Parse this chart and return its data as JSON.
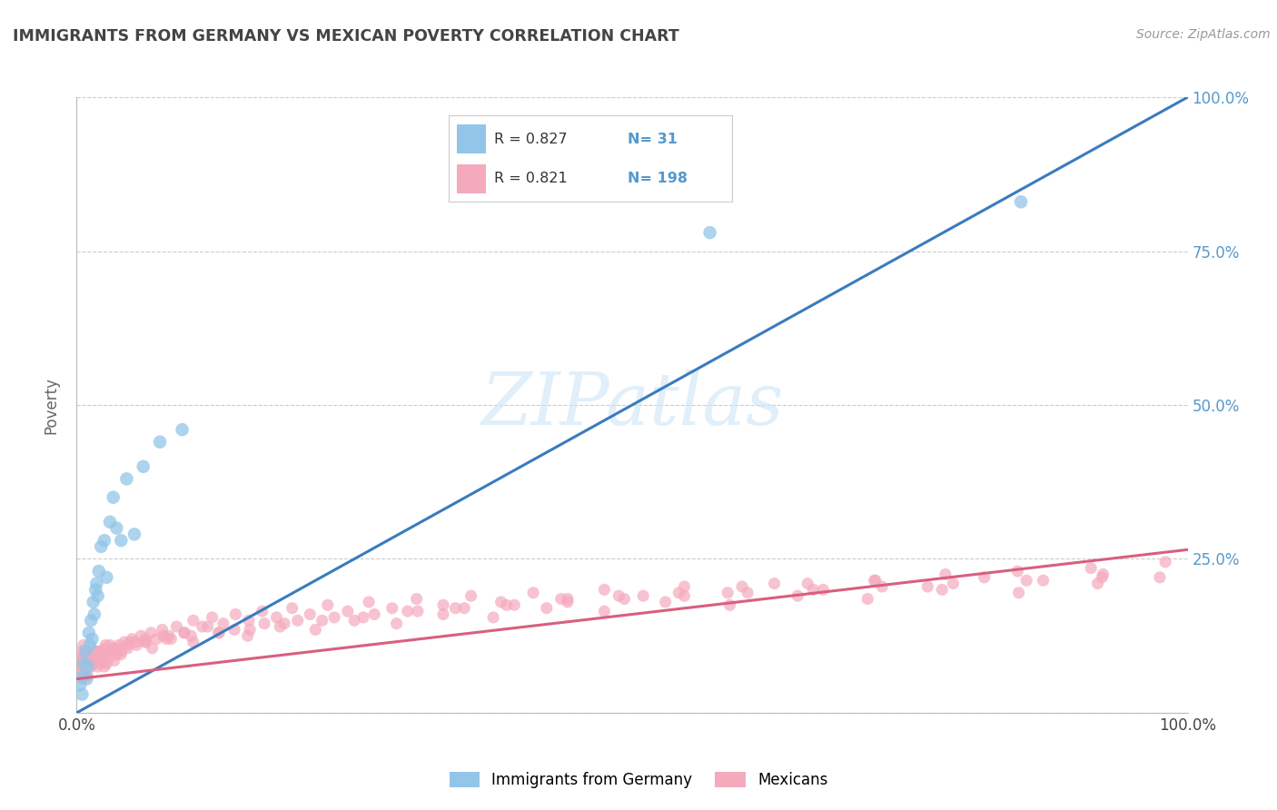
{
  "title": "IMMIGRANTS FROM GERMANY VS MEXICAN POVERTY CORRELATION CHART",
  "source": "Source: ZipAtlas.com",
  "ylabel": "Poverty",
  "watermark": "ZIPatlas",
  "xmin": 0.0,
  "xmax": 1.0,
  "ymin": 0.0,
  "ymax": 1.0,
  "yticks": [
    0.0,
    0.25,
    0.5,
    0.75,
    1.0
  ],
  "ytick_labels": [
    "",
    "25.0%",
    "50.0%",
    "75.0%",
    "100.0%"
  ],
  "xticks": [
    0.0,
    0.1,
    0.2,
    0.3,
    0.4,
    0.5,
    0.6,
    0.7,
    0.8,
    0.9,
    1.0
  ],
  "xtick_labels": [
    "0.0%",
    "",
    "",
    "",
    "",
    "",
    "",
    "",
    "",
    "",
    "100.0%"
  ],
  "blue_color": "#92c5e8",
  "pink_color": "#f4aabc",
  "blue_line_color": "#3a7bbf",
  "pink_line_color": "#d95f7f",
  "legend_R_blue": "0.827",
  "legend_N_blue": "31",
  "legend_R_pink": "0.821",
  "legend_N_pink": "198",
  "legend_label_blue": "Immigrants from Germany",
  "legend_label_pink": "Mexicans",
  "title_color": "#444444",
  "axis_color": "#666666",
  "right_tick_color": "#5599cc",
  "grid_color": "#cccccc",
  "background_color": "#ffffff",
  "blue_scatter_x": [
    0.003,
    0.005,
    0.006,
    0.007,
    0.008,
    0.009,
    0.01,
    0.011,
    0.012,
    0.013,
    0.014,
    0.015,
    0.016,
    0.017,
    0.018,
    0.019,
    0.02,
    0.022,
    0.025,
    0.027,
    0.03,
    0.033,
    0.036,
    0.04,
    0.045,
    0.052,
    0.06,
    0.075,
    0.095,
    0.57,
    0.85
  ],
  "blue_scatter_y": [
    0.045,
    0.03,
    0.06,
    0.08,
    0.1,
    0.055,
    0.075,
    0.13,
    0.11,
    0.15,
    0.12,
    0.18,
    0.16,
    0.2,
    0.21,
    0.19,
    0.23,
    0.27,
    0.28,
    0.22,
    0.31,
    0.35,
    0.3,
    0.28,
    0.38,
    0.29,
    0.4,
    0.44,
    0.46,
    0.78,
    0.83
  ],
  "pink_scatter_x": [
    0.002,
    0.003,
    0.004,
    0.005,
    0.005,
    0.006,
    0.006,
    0.007,
    0.007,
    0.008,
    0.008,
    0.009,
    0.009,
    0.01,
    0.01,
    0.011,
    0.012,
    0.013,
    0.014,
    0.015,
    0.016,
    0.017,
    0.018,
    0.019,
    0.02,
    0.021,
    0.022,
    0.023,
    0.024,
    0.025,
    0.026,
    0.027,
    0.028,
    0.03,
    0.032,
    0.034,
    0.036,
    0.038,
    0.04,
    0.043,
    0.046,
    0.05,
    0.054,
    0.058,
    0.062,
    0.067,
    0.072,
    0.077,
    0.083,
    0.09,
    0.097,
    0.105,
    0.113,
    0.122,
    0.132,
    0.143,
    0.155,
    0.167,
    0.18,
    0.194,
    0.21,
    0.226,
    0.244,
    0.263,
    0.284,
    0.306,
    0.33,
    0.355,
    0.382,
    0.411,
    0.442,
    0.475,
    0.51,
    0.547,
    0.586,
    0.628,
    0.672,
    0.718,
    0.766,
    0.817,
    0.87,
    0.924,
    0.975,
    0.006,
    0.01,
    0.015,
    0.022,
    0.03,
    0.04,
    0.053,
    0.068,
    0.085,
    0.105,
    0.128,
    0.154,
    0.183,
    0.215,
    0.25,
    0.288,
    0.33,
    0.375,
    0.423,
    0.475,
    0.53,
    0.588,
    0.649,
    0.712,
    0.779,
    0.848,
    0.919,
    0.004,
    0.007,
    0.012,
    0.018,
    0.026,
    0.036,
    0.048,
    0.062,
    0.078,
    0.097,
    0.118,
    0.142,
    0.169,
    0.199,
    0.232,
    0.268,
    0.307,
    0.349,
    0.394,
    0.442,
    0.493,
    0.547,
    0.604,
    0.663,
    0.725,
    0.789,
    0.855,
    0.923,
    0.003,
    0.008,
    0.014,
    0.022,
    0.033,
    0.046,
    0.062,
    0.081,
    0.103,
    0.128,
    0.156,
    0.187,
    0.221,
    0.258,
    0.298,
    0.341,
    0.387,
    0.436,
    0.488,
    0.542,
    0.599,
    0.658,
    0.719,
    0.782,
    0.847,
    0.913,
    0.98
  ],
  "pink_scatter_y": [
    0.065,
    0.085,
    0.07,
    0.1,
    0.055,
    0.08,
    0.11,
    0.075,
    0.095,
    0.06,
    0.085,
    0.07,
    0.1,
    0.08,
    0.06,
    0.09,
    0.085,
    0.075,
    0.095,
    0.08,
    0.1,
    0.09,
    0.085,
    0.075,
    0.095,
    0.08,
    0.1,
    0.09,
    0.085,
    0.075,
    0.105,
    0.08,
    0.095,
    0.09,
    0.1,
    0.085,
    0.095,
    0.11,
    0.1,
    0.115,
    0.105,
    0.12,
    0.11,
    0.125,
    0.115,
    0.13,
    0.12,
    0.135,
    0.125,
    0.14,
    0.13,
    0.15,
    0.14,
    0.155,
    0.145,
    0.16,
    0.15,
    0.165,
    0.155,
    0.17,
    0.16,
    0.175,
    0.165,
    0.18,
    0.17,
    0.185,
    0.175,
    0.19,
    0.18,
    0.195,
    0.185,
    0.2,
    0.19,
    0.205,
    0.195,
    0.21,
    0.2,
    0.215,
    0.205,
    0.22,
    0.215,
    0.225,
    0.22,
    0.095,
    0.085,
    0.1,
    0.09,
    0.11,
    0.095,
    0.115,
    0.105,
    0.12,
    0.115,
    0.13,
    0.125,
    0.14,
    0.135,
    0.15,
    0.145,
    0.16,
    0.155,
    0.17,
    0.165,
    0.18,
    0.175,
    0.19,
    0.185,
    0.2,
    0.195,
    0.21,
    0.085,
    0.09,
    0.095,
    0.1,
    0.11,
    0.105,
    0.115,
    0.12,
    0.125,
    0.13,
    0.14,
    0.135,
    0.145,
    0.15,
    0.155,
    0.16,
    0.165,
    0.17,
    0.175,
    0.18,
    0.185,
    0.19,
    0.195,
    0.2,
    0.205,
    0.21,
    0.215,
    0.22,
    0.08,
    0.09,
    0.095,
    0.1,
    0.105,
    0.11,
    0.115,
    0.12,
    0.125,
    0.13,
    0.135,
    0.145,
    0.15,
    0.155,
    0.165,
    0.17,
    0.175,
    0.185,
    0.19,
    0.195,
    0.205,
    0.21,
    0.215,
    0.225,
    0.23,
    0.235,
    0.245
  ],
  "blue_trend_x": [
    0.0,
    1.0
  ],
  "blue_trend_y": [
    0.0,
    1.0
  ],
  "pink_trend_x": [
    0.0,
    1.0
  ],
  "pink_trend_y": [
    0.055,
    0.265
  ]
}
